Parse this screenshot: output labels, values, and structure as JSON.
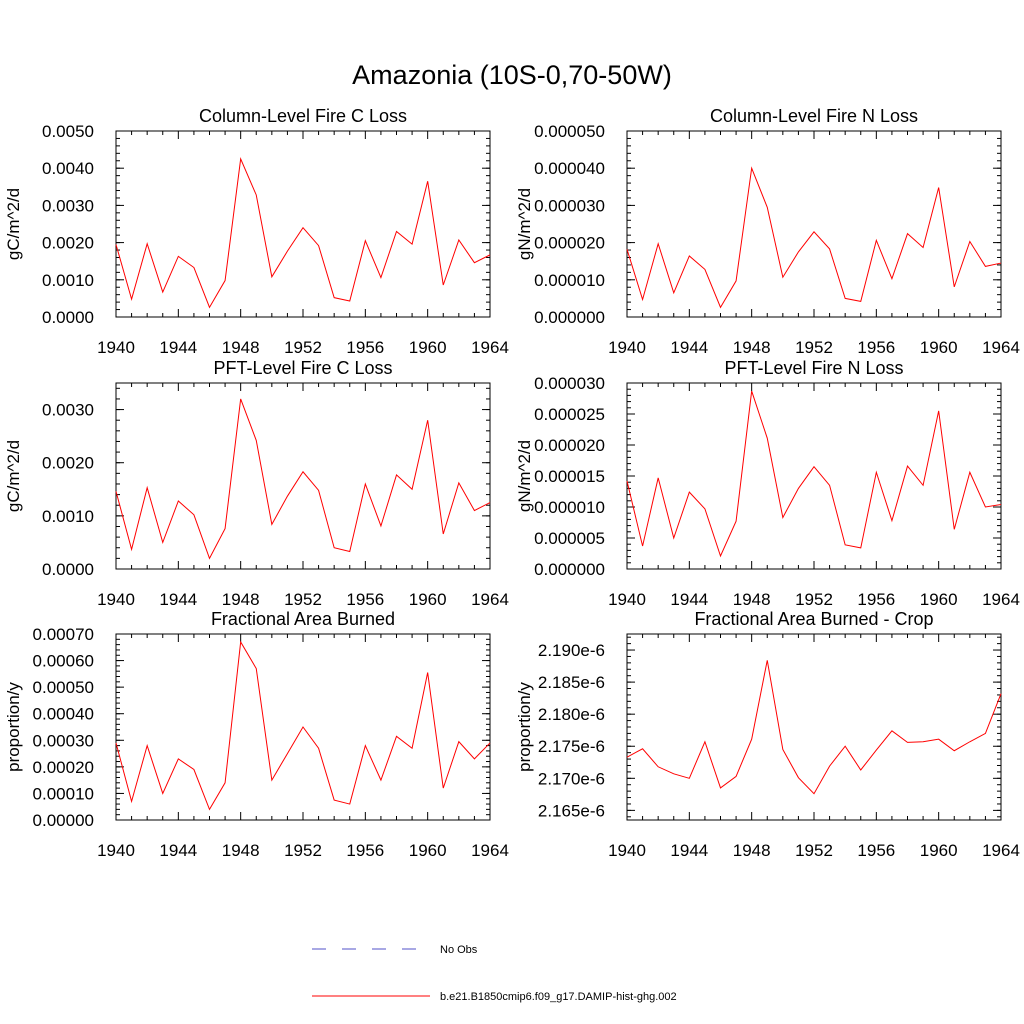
{
  "page": {
    "title": "Amazonia (10S-0,70-50W)"
  },
  "legend": {
    "entries": [
      {
        "label": "No Obs",
        "color": "#5050c8",
        "dash": true
      },
      {
        "label": "b.e21.B1850cmip6.f09_g17.DAMIP-hist-ghg.002",
        "color": "#ff0000",
        "dash": false
      }
    ]
  },
  "chart_data": [
    {
      "type": "line",
      "title": "Column-Level Fire C Loss",
      "ylabel": "gC/m^2/d",
      "xlim": [
        1940,
        1964
      ],
      "ylim": [
        0,
        0.005
      ],
      "xticks": [
        1940,
        1944,
        1948,
        1952,
        1956,
        1960,
        1964
      ],
      "xtick_labels": [
        "1940",
        "1944",
        "1948",
        "1952",
        "1956",
        "1960",
        "1964"
      ],
      "yticks": [
        0,
        0.001,
        0.002,
        0.003,
        0.004,
        0.005
      ],
      "ytick_labels": [
        "0.0000",
        "0.0010",
        "0.0020",
        "0.0030",
        "0.0040",
        "0.0050"
      ],
      "x": [
        1940,
        1941,
        1942,
        1943,
        1944,
        1945,
        1946,
        1947,
        1948,
        1949,
        1950,
        1951,
        1952,
        1953,
        1954,
        1955,
        1956,
        1957,
        1958,
        1959,
        1960,
        1961,
        1962,
        1963,
        1964
      ],
      "series": [
        {
          "color": "#ff0000",
          "values": [
            0.00195,
            0.00048,
            0.00197,
            0.00067,
            0.00163,
            0.00133,
            0.00026,
            0.00098,
            0.00425,
            0.00328,
            0.00108,
            0.00177,
            0.0024,
            0.00192,
            0.00052,
            0.00043,
            0.00205,
            0.00106,
            0.0023,
            0.00196,
            0.00365,
            0.00086,
            0.00207,
            0.00146,
            0.00167
          ]
        }
      ]
    },
    {
      "type": "line",
      "title": "Column-Level Fire N Loss",
      "ylabel": "gN/m^2/d",
      "xlim": [
        1940,
        1964
      ],
      "ylim": [
        0,
        5e-05
      ],
      "xticks": [
        1940,
        1944,
        1948,
        1952,
        1956,
        1960,
        1964
      ],
      "xtick_labels": [
        "1940",
        "1944",
        "1948",
        "1952",
        "1956",
        "1960",
        "1964"
      ],
      "yticks": [
        0,
        1e-05,
        2e-05,
        3e-05,
        4e-05,
        5e-05
      ],
      "ytick_labels": [
        "0.000000",
        "0.000010",
        "0.000020",
        "0.000030",
        "0.000040",
        "0.000050"
      ],
      "x": [
        1940,
        1941,
        1942,
        1943,
        1944,
        1945,
        1946,
        1947,
        1948,
        1949,
        1950,
        1951,
        1952,
        1953,
        1954,
        1955,
        1956,
        1957,
        1958,
        1959,
        1960,
        1961,
        1962,
        1963,
        1964
      ],
      "series": [
        {
          "color": "#ff0000",
          "values": [
            1.82e-05,
            4.7e-06,
            1.97e-05,
            6.5e-06,
            1.64e-05,
            1.28e-05,
            2.6e-06,
            9.7e-06,
            4e-05,
            2.95e-05,
            1.07e-05,
            1.75e-05,
            2.29e-05,
            1.83e-05,
            5e-06,
            4.2e-06,
            2.06e-05,
            1.03e-05,
            2.24e-05,
            1.87e-05,
            3.48e-05,
            8.1e-06,
            2.03e-05,
            1.36e-05,
            1.45e-05
          ]
        }
      ]
    },
    {
      "type": "line",
      "title": "PFT-Level Fire C Loss",
      "ylabel": "gC/m^2/d",
      "xlim": [
        1940,
        1964
      ],
      "ylim": [
        0,
        0.0035
      ],
      "xticks": [
        1940,
        1944,
        1948,
        1952,
        1956,
        1960,
        1964
      ],
      "xtick_labels": [
        "1940",
        "1944",
        "1948",
        "1952",
        "1956",
        "1960",
        "1964"
      ],
      "yticks": [
        0,
        0.001,
        0.002,
        0.003
      ],
      "ytick_labels": [
        "0.0000",
        "0.0010",
        "0.0020",
        "0.0030"
      ],
      "x": [
        1940,
        1941,
        1942,
        1943,
        1944,
        1945,
        1946,
        1947,
        1948,
        1949,
        1950,
        1951,
        1952,
        1953,
        1954,
        1955,
        1956,
        1957,
        1958,
        1959,
        1960,
        1961,
        1962,
        1963,
        1964
      ],
      "series": [
        {
          "color": "#ff0000",
          "values": [
            0.00146,
            0.00037,
            0.00153,
            0.0005,
            0.00128,
            0.00102,
            0.0002,
            0.00076,
            0.0032,
            0.00242,
            0.00084,
            0.00137,
            0.00183,
            0.00148,
            0.0004,
            0.00033,
            0.0016,
            0.00081,
            0.00177,
            0.0015,
            0.0028,
            0.00066,
            0.00162,
            0.0011,
            0.00125
          ]
        }
      ]
    },
    {
      "type": "line",
      "title": "PFT-Level Fire N Loss",
      "ylabel": "gN/m^2/d",
      "xlim": [
        1940,
        1964
      ],
      "ylim": [
        0,
        3e-05
      ],
      "xticks": [
        1940,
        1944,
        1948,
        1952,
        1956,
        1960,
        1964
      ],
      "xtick_labels": [
        "1940",
        "1944",
        "1948",
        "1952",
        "1956",
        "1960",
        "1964"
      ],
      "yticks": [
        0,
        5e-06,
        1e-05,
        1.5e-05,
        2e-05,
        2.5e-05,
        3e-05
      ],
      "ytick_labels": [
        "0.000000",
        "0.000005",
        "0.000010",
        "0.000015",
        "0.000020",
        "0.000025",
        "0.000030"
      ],
      "x": [
        1940,
        1941,
        1942,
        1943,
        1944,
        1945,
        1946,
        1947,
        1948,
        1949,
        1950,
        1951,
        1952,
        1953,
        1954,
        1955,
        1956,
        1957,
        1958,
        1959,
        1960,
        1961,
        1962,
        1963,
        1964
      ],
      "series": [
        {
          "color": "#ff0000",
          "values": [
            1.42e-05,
            3.7e-06,
            1.47e-05,
            5e-06,
            1.24e-05,
            9.7e-06,
            2.1e-06,
            7.7e-06,
            2.87e-05,
            2.11e-05,
            8.3e-06,
            1.3e-05,
            1.65e-05,
            1.35e-05,
            3.9e-06,
            3.4e-06,
            1.56e-05,
            7.8e-06,
            1.66e-05,
            1.35e-05,
            2.55e-05,
            6.4e-06,
            1.56e-05,
            1e-05,
            1.04e-05
          ]
        }
      ]
    },
    {
      "type": "line",
      "title": "Fractional Area Burned",
      "ylabel": "proportion/y",
      "xlim": [
        1940,
        1964
      ],
      "ylim": [
        0,
        0.0007
      ],
      "xticks": [
        1940,
        1944,
        1948,
        1952,
        1956,
        1960,
        1964
      ],
      "xtick_labels": [
        "1940",
        "1944",
        "1948",
        "1952",
        "1956",
        "1960",
        "1964"
      ],
      "yticks": [
        0,
        0.0001,
        0.0002,
        0.0003,
        0.0004,
        0.0005,
        0.0006,
        0.0007
      ],
      "ytick_labels": [
        "0.00000",
        "0.00010",
        "0.00020",
        "0.00030",
        "0.00040",
        "0.00050",
        "0.00060",
        "0.00070"
      ],
      "x": [
        1940,
        1941,
        1942,
        1943,
        1944,
        1945,
        1946,
        1947,
        1948,
        1949,
        1950,
        1951,
        1952,
        1953,
        1954,
        1955,
        1956,
        1957,
        1958,
        1959,
        1960,
        1961,
        1962,
        1963,
        1964
      ],
      "series": [
        {
          "color": "#ff0000",
          "values": [
            0.00029,
            7e-05,
            0.00028,
            0.0001,
            0.00023,
            0.00019,
            4e-05,
            0.00014,
            0.00067,
            0.00057,
            0.00015,
            0.00025,
            0.00035,
            0.00027,
            7.5e-05,
            6e-05,
            0.00028,
            0.00015,
            0.000315,
            0.00027,
            0.000555,
            0.00012,
            0.000295,
            0.00023,
            0.00029
          ]
        }
      ]
    },
    {
      "type": "line",
      "title": "Fractional Area Burned - Crop",
      "ylabel": "proportion/y",
      "xlim": [
        1940,
        1964
      ],
      "ylim": [
        2.1635e-06,
        2.1925e-06
      ],
      "xticks": [
        1940,
        1944,
        1948,
        1952,
        1956,
        1960,
        1964
      ],
      "xtick_labels": [
        "1940",
        "1944",
        "1948",
        "1952",
        "1956",
        "1960",
        "1964"
      ],
      "yticks": [
        2.165e-06,
        2.17e-06,
        2.175e-06,
        2.18e-06,
        2.185e-06,
        2.19e-06
      ],
      "ytick_labels": [
        "2.165e-6",
        "2.170e-6",
        "2.175e-6",
        "2.180e-6",
        "2.185e-6",
        "2.190e-6"
      ],
      "x": [
        1940,
        1941,
        1942,
        1943,
        1944,
        1945,
        1946,
        1947,
        1948,
        1949,
        1950,
        1951,
        1952,
        1953,
        1954,
        1955,
        1956,
        1957,
        1958,
        1959,
        1960,
        1961,
        1962,
        1963,
        1964
      ],
      "series": [
        {
          "color": "#ff0000",
          "values": [
            2.1733e-06,
            2.1746e-06,
            2.1718e-06,
            2.1707e-06,
            2.17e-06,
            2.1757e-06,
            2.1685e-06,
            2.1703e-06,
            2.1761e-06,
            2.1884e-06,
            2.1745e-06,
            2.1701e-06,
            2.1676e-06,
            2.1719e-06,
            2.175e-06,
            2.1713e-06,
            2.1744e-06,
            2.1774e-06,
            2.1756e-06,
            2.1757e-06,
            2.1761e-06,
            2.1743e-06,
            2.1757e-06,
            2.177e-06,
            2.1832e-06
          ]
        }
      ]
    }
  ]
}
